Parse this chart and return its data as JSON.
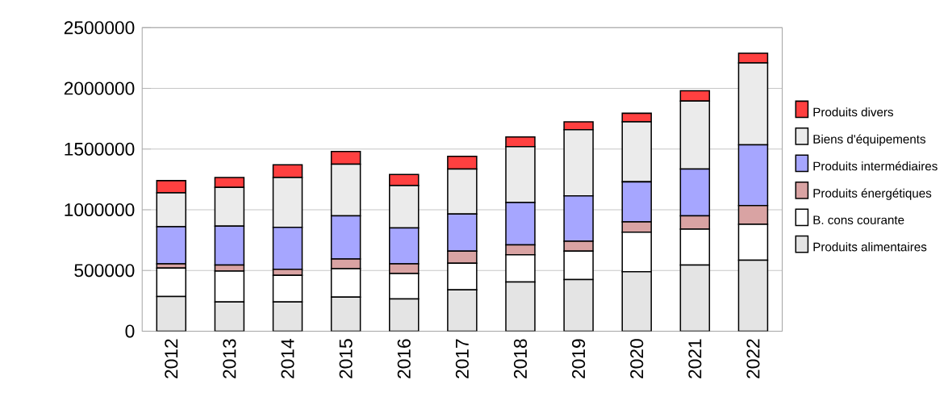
{
  "chart_data": {
    "type": "bar",
    "stacked": true,
    "categories": [
      "2012",
      "2013",
      "2014",
      "2015",
      "2016",
      "2017",
      "2018",
      "2019",
      "2020",
      "2021",
      "2022"
    ],
    "series": [
      {
        "name": "Produits alimentaires",
        "color": "#e4e4e4",
        "values": [
          285000,
          240000,
          240000,
          280000,
          265000,
          340000,
          405000,
          425000,
          490000,
          545000,
          585000
        ]
      },
      {
        "name": "B. cons courante",
        "color": "#ffffff",
        "values": [
          235000,
          255000,
          220000,
          235000,
          210000,
          220000,
          225000,
          235000,
          325000,
          295000,
          295000
        ]
      },
      {
        "name": "Produits énergétiques",
        "color": "#d9a3a3",
        "values": [
          35000,
          50000,
          50000,
          80000,
          80000,
          100000,
          80000,
          80000,
          85000,
          110000,
          155000
        ]
      },
      {
        "name": "Produits intermédiaires",
        "color": "#a6a6ff",
        "values": [
          305000,
          320000,
          345000,
          355000,
          295000,
          305000,
          350000,
          375000,
          330000,
          385000,
          500000
        ]
      },
      {
        "name": "Biens d'équipements",
        "color": "#ebebeb",
        "values": [
          280000,
          320000,
          410000,
          425000,
          350000,
          370000,
          460000,
          545000,
          495000,
          560000,
          675000
        ]
      },
      {
        "name": "Produits divers",
        "color": "#ff4040",
        "values": [
          100000,
          80000,
          105000,
          105000,
          90000,
          105000,
          80000,
          65000,
          70000,
          85000,
          80000
        ]
      }
    ],
    "ylim": [
      0,
      2500000
    ],
    "yticks": [
      0,
      500000,
      1000000,
      1500000,
      2000000,
      2500000
    ],
    "grid": "y",
    "legend": "right"
  }
}
